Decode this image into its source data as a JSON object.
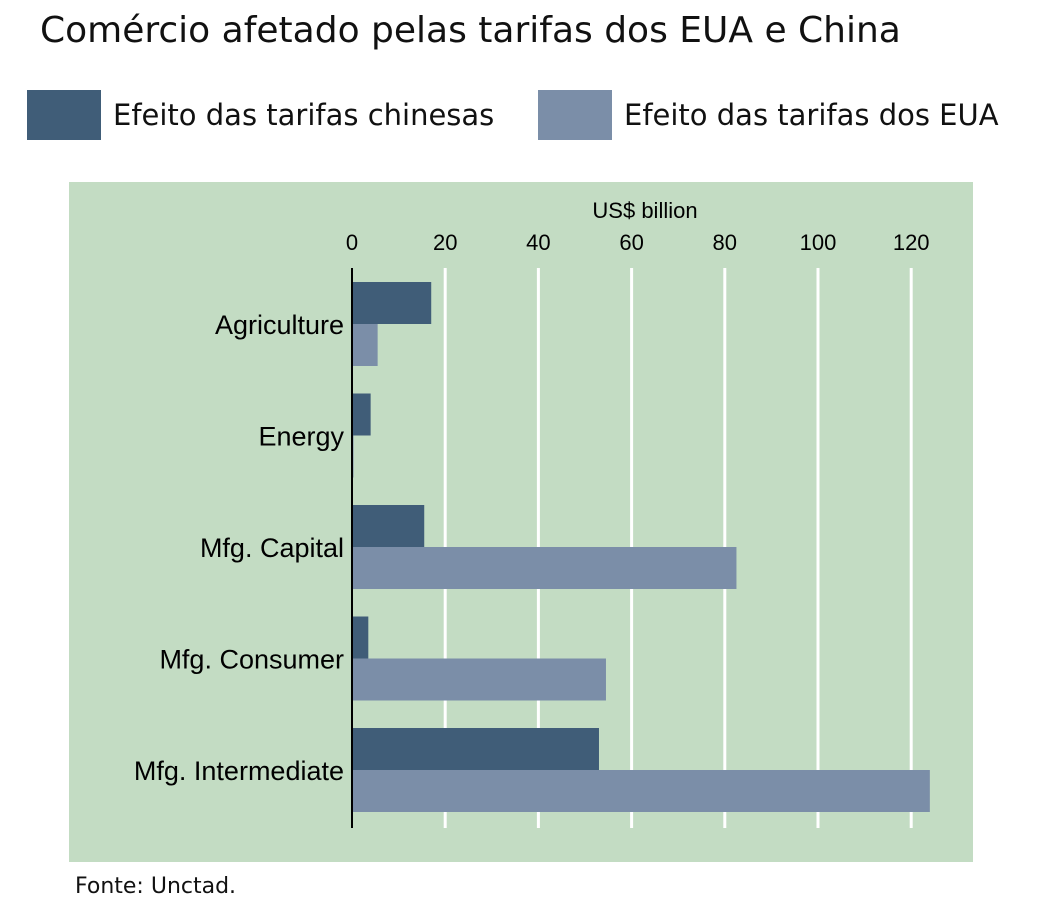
{
  "title": "Comércio afetado pelas tarifas dos EUA e China",
  "source": "Fonte: Unctad.",
  "chart_data": {
    "type": "bar",
    "orientation": "horizontal",
    "xlabel": "US$ billion",
    "xlim": [
      0,
      125
    ],
    "xticks": [
      0,
      20,
      40,
      60,
      80,
      100,
      120
    ],
    "grid": true,
    "legend_position": "top",
    "categories": [
      "Agriculture",
      "Energy",
      "Mfg. Capital",
      "Mfg. Consumer",
      "Mfg. Intermediate"
    ],
    "series": [
      {
        "name": "Efeito das tarifas chinesas",
        "color": "#405d78",
        "values": [
          17,
          4,
          15.5,
          3.5,
          53
        ]
      },
      {
        "name": "Efeito das tarifas dos EUA",
        "color": "#7b8ea8",
        "values": [
          5.5,
          0.3,
          82.5,
          54.5,
          124
        ]
      }
    ]
  },
  "colors": {
    "plot_background": "#c3dcc3",
    "gridline": "#ffffff",
    "axis": "#000000"
  }
}
